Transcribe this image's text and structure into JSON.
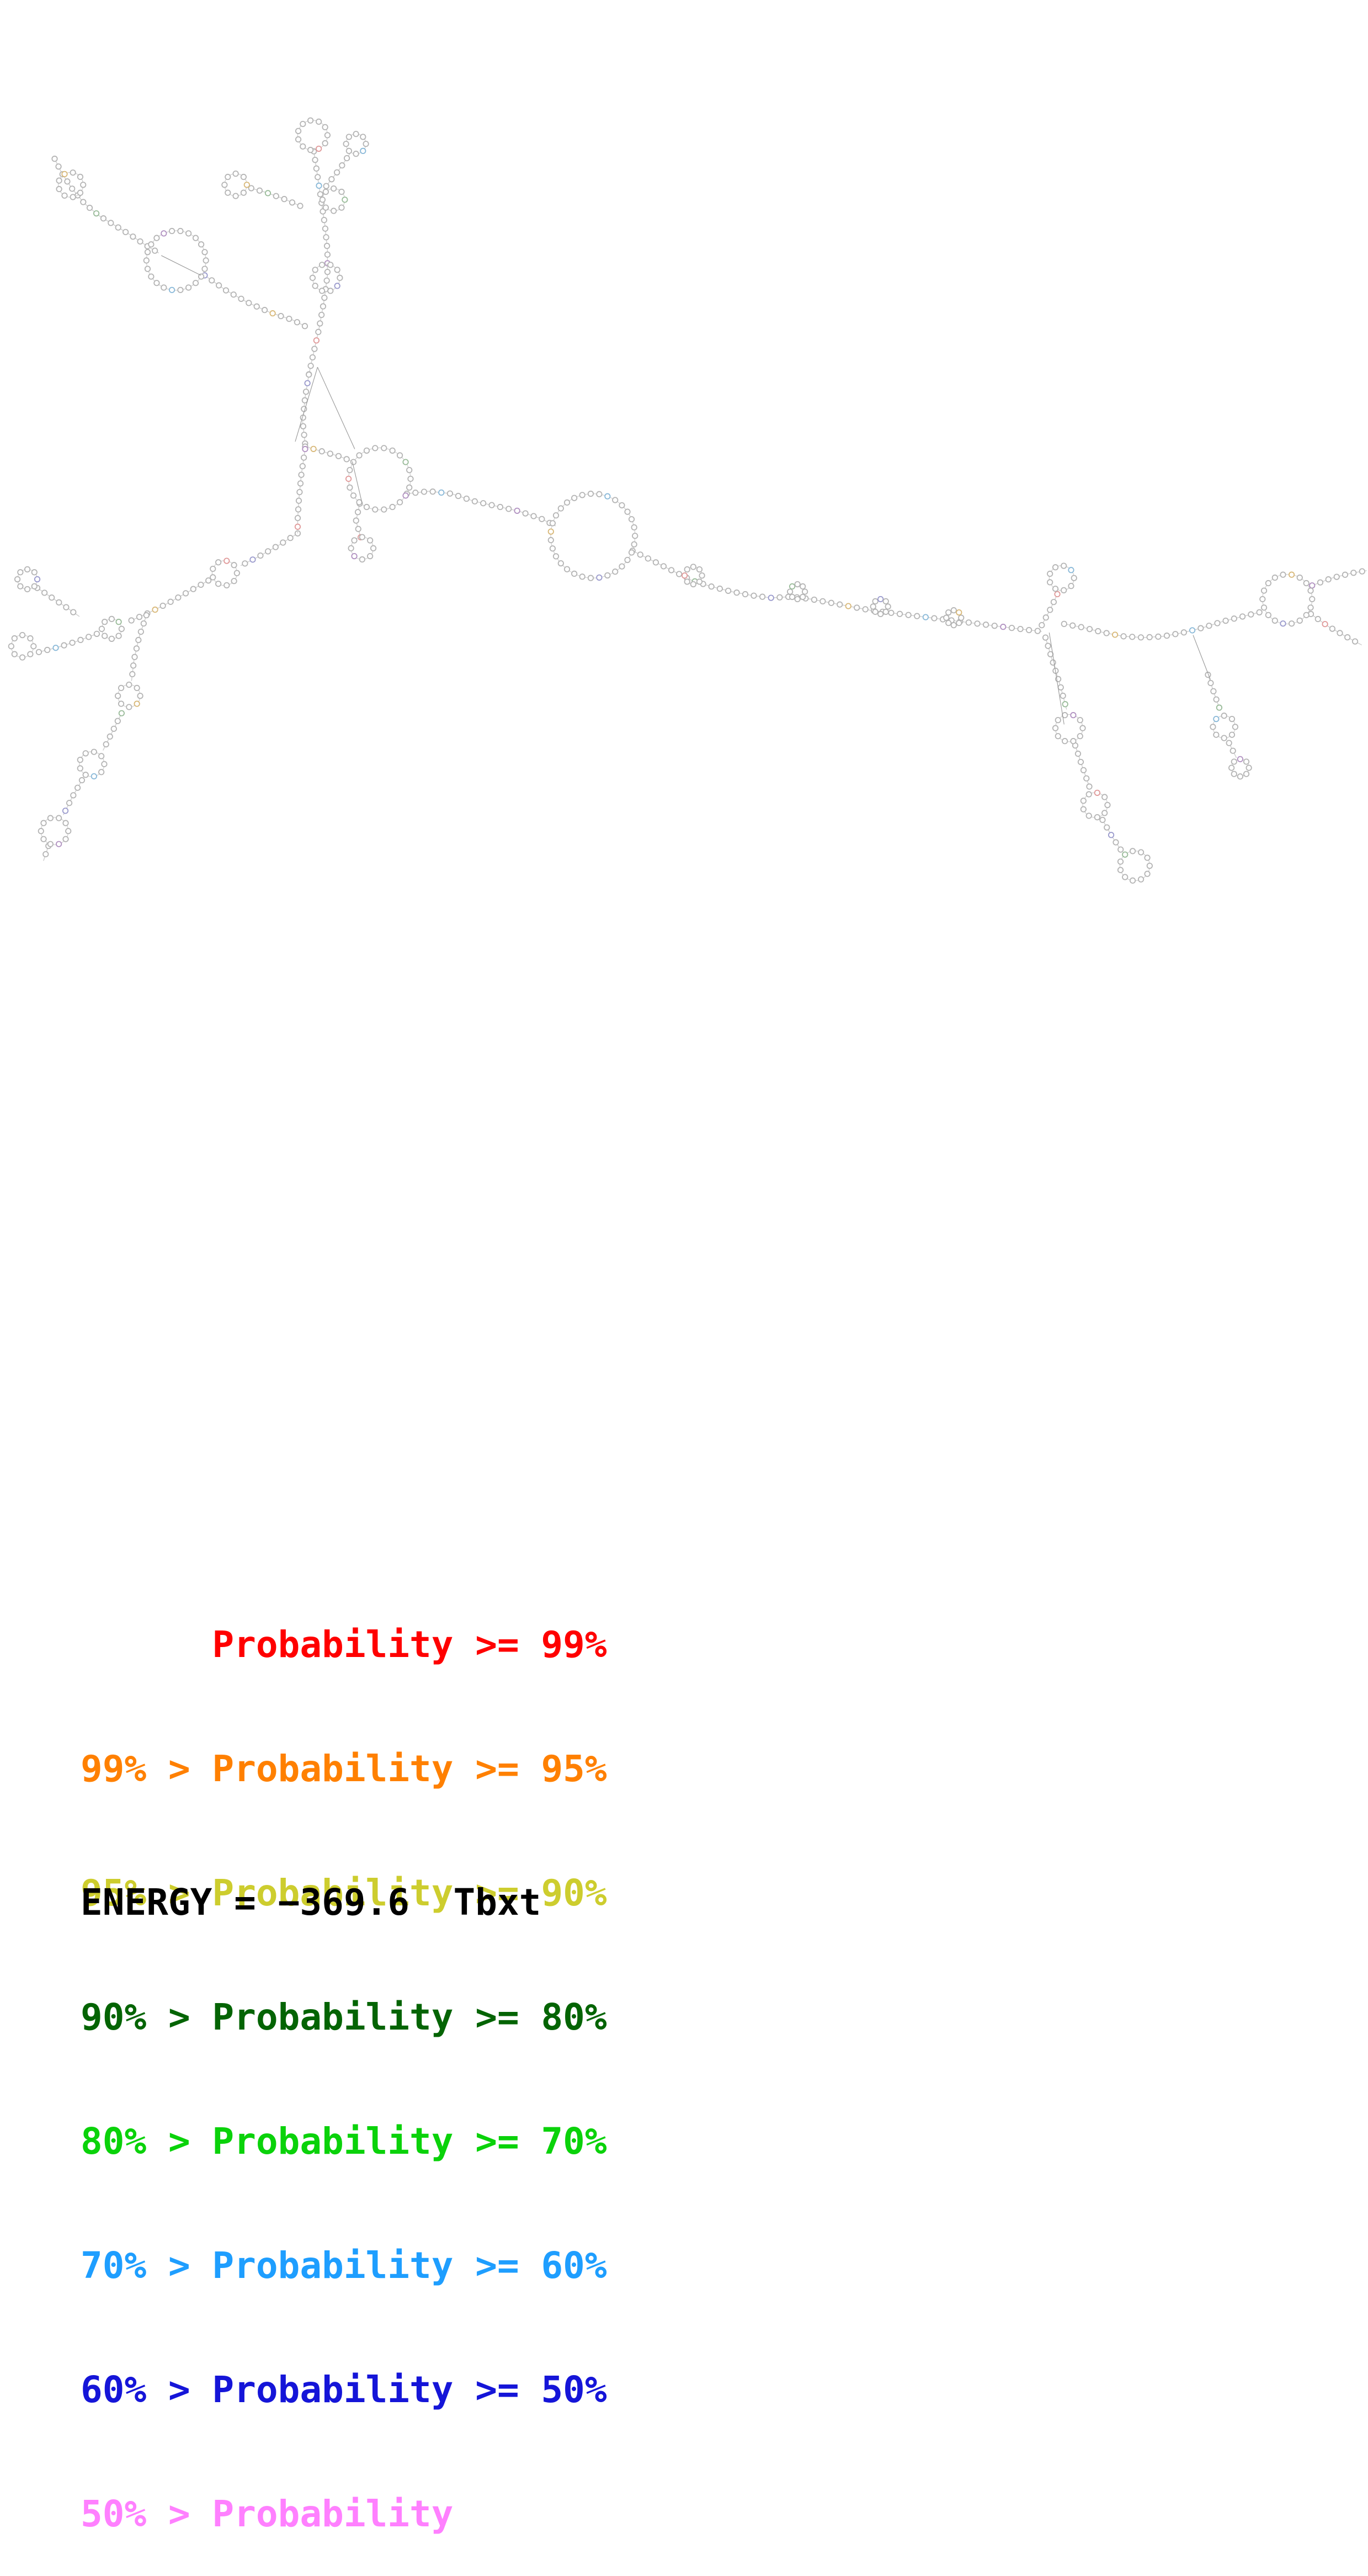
{
  "legend": {
    "lines": [
      {
        "text": "Probability >= 99%",
        "color": "#ff0000",
        "indent": true
      },
      {
        "text": "99% > Probability >= 95%",
        "color": "#ff8000"
      },
      {
        "text": "95% > Probability >= 90%",
        "color": "#cdcd2e"
      },
      {
        "text": "90% > Probability >= 80%",
        "color": "#046404"
      },
      {
        "text": "80% > Probability >= 70%",
        "color": "#0ad20a"
      },
      {
        "text": "70% > Probability >= 60%",
        "color": "#1e9eff"
      },
      {
        "text": "60% > Probability >= 50%",
        "color": "#1515d8"
      },
      {
        "text": "50% > Probability",
        "color": "#ff80ff"
      }
    ]
  },
  "energy": {
    "text": "ENERGY = −369.6  Tbxt"
  },
  "structure": {
    "bead_color": "#b4b4b4",
    "bead_fill": "#ffffff",
    "path_color": "#cccccc",
    "connector_color": "#999999",
    "accent_palette": [
      "#e09999",
      "#99bb99",
      "#9999cc",
      "#d8b878",
      "#88b8d8",
      "#b090c0"
    ],
    "bead_spacing": 7,
    "bead_radius": 2.1,
    "segments": [
      [
        [
          44,
          128
        ],
        [
          50,
          140
        ],
        [
          58,
          152
        ],
        [
          68,
          164
        ],
        [
          80,
          174
        ],
        [
          93,
          182
        ],
        [
          106,
          190
        ],
        [
          118,
          198
        ],
        [
          128,
          204
        ]
      ],
      [
        [
          165,
          222
        ],
        [
          182,
          234
        ],
        [
          200,
          244
        ],
        [
          218,
          252
        ],
        [
          236,
          258
        ],
        [
          248,
          264
        ]
      ],
      [
        [
          253,
          122
        ],
        [
          256,
          142
        ],
        [
          259,
          162
        ],
        [
          262,
          182
        ],
        [
          264,
          202
        ],
        [
          264,
          222
        ],
        [
          261,
          244
        ],
        [
          257,
          266
        ],
        [
          252,
          288
        ],
        [
          249,
          302
        ]
      ],
      [
        [
          242,
          166
        ],
        [
          228,
          160
        ],
        [
          214,
          155
        ],
        [
          200,
          151
        ]
      ],
      [
        [
          263,
          150
        ],
        [
          274,
          136
        ],
        [
          282,
          124
        ]
      ],
      [
        [
          249,
          302
        ],
        [
          246,
          320
        ],
        [
          244,
          340
        ],
        [
          246,
          358
        ]
      ],
      [
        [
          246,
          360
        ],
        [
          260,
          364
        ],
        [
          274,
          368
        ],
        [
          284,
          372
        ]
      ],
      [
        [
          328,
          398
        ],
        [
          346,
          396
        ],
        [
          364,
          398
        ],
        [
          382,
          404
        ],
        [
          400,
          408
        ],
        [
          418,
          412
        ],
        [
          436,
          418
        ],
        [
          448,
          424
        ]
      ],
      [
        [
          290,
          406
        ],
        [
          287,
          420
        ],
        [
          291,
          434
        ]
      ],
      [
        [
          510,
          444
        ],
        [
          526,
          452
        ],
        [
          542,
          460
        ],
        [
          558,
          468
        ],
        [
          574,
          473
        ],
        [
          590,
          477
        ],
        [
          606,
          480
        ],
        [
          622,
          482
        ],
        [
          638,
          481
        ],
        [
          654,
          483
        ],
        [
          670,
          486
        ],
        [
          686,
          489
        ],
        [
          702,
          492
        ],
        [
          718,
          494
        ],
        [
          734,
          496
        ],
        [
          750,
          498
        ],
        [
          766,
          500
        ],
        [
          782,
          502
        ],
        [
          798,
          504
        ],
        [
          814,
          506
        ],
        [
          830,
          508
        ],
        [
          840,
          509
        ]
      ],
      [
        [
          840,
          504
        ],
        [
          847,
          491
        ],
        [
          853,
          478
        ]
      ],
      [
        [
          843,
          514
        ],
        [
          849,
          534
        ],
        [
          855,
          553
        ],
        [
          860,
          572
        ]
      ],
      [
        [
          867,
          601
        ],
        [
          873,
          619
        ],
        [
          879,
          636
        ]
      ],
      [
        [
          889,
          661
        ],
        [
          897,
          675
        ],
        [
          905,
          687
        ]
      ],
      [
        [
          858,
          503
        ],
        [
          874,
          506
        ],
        [
          890,
          510
        ],
        [
          906,
          513
        ],
        [
          922,
          514
        ],
        [
          938,
          513
        ],
        [
          954,
          510
        ],
        [
          970,
          506
        ],
        [
          986,
          501
        ],
        [
          1002,
          497
        ],
        [
          1018,
          493
        ]
      ],
      [
        [
          1058,
          472
        ],
        [
          1074,
          466
        ],
        [
          1090,
          462
        ],
        [
          1102,
          460
        ]
      ],
      [
        [
          1057,
          495
        ],
        [
          1071,
          505
        ],
        [
          1085,
          513
        ],
        [
          1098,
          520
        ]
      ],
      [
        [
          974,
          544
        ],
        [
          979,
          559
        ],
        [
          984,
          573
        ]
      ],
      [
        [
          991,
          599
        ],
        [
          997,
          611
        ]
      ],
      [
        [
          240,
          430
        ],
        [
          224,
          440
        ],
        [
          208,
          449
        ],
        [
          194,
          456
        ]
      ],
      [
        [
          168,
          468
        ],
        [
          152,
          477
        ],
        [
          136,
          486
        ],
        [
          120,
          494
        ],
        [
          104,
          501
        ]
      ],
      [
        [
          78,
          511
        ],
        [
          62,
          517
        ],
        [
          46,
          522
        ],
        [
          30,
          526
        ]
      ],
      [
        [
          30,
          474
        ],
        [
          42,
          482
        ],
        [
          54,
          490
        ],
        [
          64,
          497
        ]
      ],
      [
        [
          246,
          362
        ],
        [
          243,
          382
        ],
        [
          241,
          402
        ],
        [
          240,
          418
        ],
        [
          240,
          430
        ]
      ],
      [
        [
          118,
          496
        ],
        [
          112,
          514
        ],
        [
          108,
          532
        ],
        [
          106,
          549
        ]
      ],
      [
        [
          98,
          575
        ],
        [
          90,
          591
        ],
        [
          83,
          605
        ]
      ],
      [
        [
          66,
          629
        ],
        [
          58,
          643
        ],
        [
          51,
          657
        ]
      ],
      [
        [
          39,
          682
        ],
        [
          35,
          694
        ]
      ]
    ],
    "loops": [
      [
        57,
        149,
        10
      ],
      [
        142,
        210,
        24
      ],
      [
        252,
        109,
        12
      ],
      [
        269,
        161,
        9
      ],
      [
        263,
        224,
        11
      ],
      [
        190,
        149,
        9
      ],
      [
        287,
        116,
        8
      ],
      [
        306,
        386,
        25
      ],
      [
        478,
        432,
        34
      ],
      [
        292,
        442,
        9
      ],
      [
        559,
        464,
        7
      ],
      [
        643,
        477,
        6
      ],
      [
        710,
        489,
        6
      ],
      [
        769,
        498,
        6
      ],
      [
        856,
        466,
        10
      ],
      [
        862,
        587,
        11
      ],
      [
        883,
        649,
        10
      ],
      [
        915,
        698,
        12
      ],
      [
        1038,
        483,
        20
      ],
      [
        987,
        586,
        9
      ],
      [
        1000,
        619,
        7
      ],
      [
        181,
        462,
        10
      ],
      [
        90,
        507,
        8
      ],
      [
        18,
        521,
        9
      ],
      [
        22,
        467,
        8
      ],
      [
        104,
        561,
        9
      ],
      [
        74,
        616,
        10
      ],
      [
        44,
        670,
        11
      ]
    ],
    "connectors": [
      [
        [
          256,
          296
        ],
        [
          238,
          356
        ]
      ],
      [
        [
          256,
          296
        ],
        [
          286,
          362
        ]
      ],
      [
        [
          846,
          510
        ],
        [
          858,
          584
        ]
      ],
      [
        [
          962,
          512
        ],
        [
          976,
          548
        ]
      ],
      [
        [
          130,
          206
        ],
        [
          162,
          222
        ]
      ],
      [
        [
          284,
          372
        ],
        [
          292,
          406
        ]
      ]
    ]
  }
}
